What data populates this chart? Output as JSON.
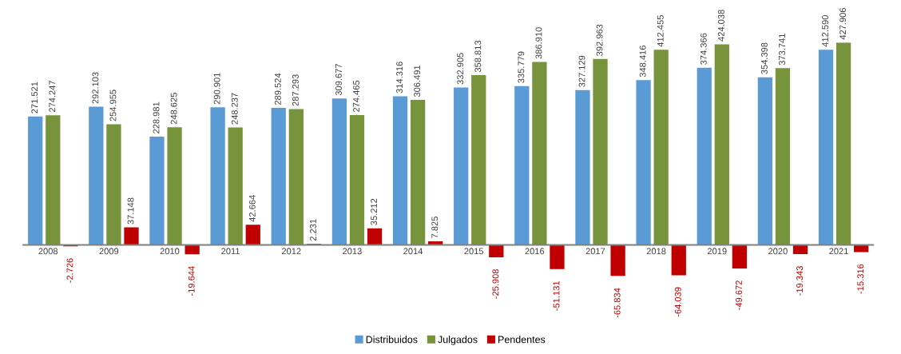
{
  "chart_data": {
    "type": "bar",
    "categories": [
      "2008",
      "2009",
      "2010",
      "2011",
      "2012",
      "2013",
      "2014",
      "2015",
      "2016",
      "2017",
      "2018",
      "2019",
      "2020",
      "2021"
    ],
    "legend": "bottom",
    "grid": false,
    "tick_labels": "x",
    "series": [
      {
        "name": "Distribuidos",
        "color": "#5b9bd5",
        "values": [
          271521,
          292103,
          228981,
          290901,
          289524,
          309677,
          314316,
          332905,
          335779,
          327129,
          348416,
          374366,
          354398,
          412590
        ],
        "value_labels": [
          "271.521",
          "292.103",
          "228.981",
          "290.901",
          "289.524",
          "309.677",
          "314.316",
          "332.905",
          "335.779",
          "327.129",
          "348.416",
          "374.366",
          "354.398",
          "412.590"
        ]
      },
      {
        "name": "Julgados",
        "color": "#77933c",
        "values": [
          274247,
          254955,
          248625,
          248237,
          287293,
          274465,
          306491,
          358813,
          386910,
          392963,
          412455,
          424038,
          373741,
          427906
        ],
        "value_labels": [
          "274.247",
          "254.955",
          "248.625",
          "248.237",
          "287.293",
          "274.465",
          "306.491",
          "358.813",
          "386.910",
          "392.963",
          "412.455",
          "424.038",
          "373.741",
          "427.906"
        ]
      },
      {
        "name": "Pendentes",
        "color": "#c00000",
        "values": [
          -2726,
          37148,
          -19644,
          42664,
          2231,
          35212,
          7825,
          -25908,
          -51131,
          -65834,
          -64039,
          -49672,
          -19343,
          -15316
        ],
        "value_labels": [
          "-2.726",
          "37.148",
          "-19.644",
          "42.664",
          "2.231",
          "35.212",
          "7.825",
          "-25.908",
          "-51.131",
          "-65.834",
          "-64.039",
          "-49.672",
          "-19.343",
          "-15.316"
        ]
      }
    ]
  }
}
